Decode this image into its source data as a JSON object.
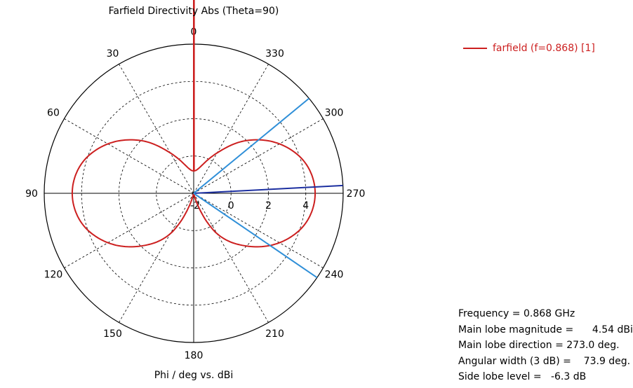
{
  "chart_data": {
    "type": "polar",
    "title": "Farfield Directivity Abs (Theta=90)",
    "xlabel": "Phi / deg vs. dBi",
    "angle_ticks": [
      "0",
      "30",
      "60",
      "90",
      "120",
      "150",
      "180",
      "210",
      "240",
      "270",
      "300",
      "330"
    ],
    "angle_direction": "counter-clockwise, 0 at top",
    "radial_ticks": [
      "-2",
      "0",
      "2",
      "4"
    ],
    "radial_range": [
      -2,
      6
    ],
    "grid": true,
    "legend_position": "top-right",
    "series": [
      {
        "name": "farfield (f=0.868) [1]",
        "color": "#cc1f1f",
        "phi_deg": [
          0,
          15,
          30,
          45,
          60,
          75,
          90,
          105,
          120,
          135,
          150,
          165,
          180,
          195,
          210,
          225,
          240,
          255,
          270,
          285,
          300,
          315,
          330,
          345
        ],
        "dbi": [
          -0.8,
          -0.5,
          0.5,
          2.0,
          3.3,
          4.2,
          4.5,
          4.2,
          3.3,
          2.0,
          0.5,
          -1.8,
          -2.0,
          -1.8,
          0.5,
          2.0,
          3.3,
          4.2,
          4.5,
          4.2,
          3.3,
          2.0,
          0.5,
          -0.5
        ]
      }
    ],
    "annotations": [
      {
        "type": "main-lobe-direction",
        "phi_deg": 273.0,
        "color": "#1c2fa0"
      },
      {
        "type": "3dB-beamwidth-limit",
        "phi_deg": 309.5,
        "color": "#2f8fd8"
      },
      {
        "type": "3dB-beamwidth-limit",
        "phi_deg": 235.6,
        "color": "#2f8fd8"
      }
    ],
    "info": [
      "Frequency = 0.868 GHz",
      "Main lobe magnitude =      4.54 dBi",
      "Main lobe direction = 273.0 deg.",
      "Angular width (3 dB) =    73.9 deg.",
      "Side lobe level =   -6.3 dB"
    ]
  }
}
